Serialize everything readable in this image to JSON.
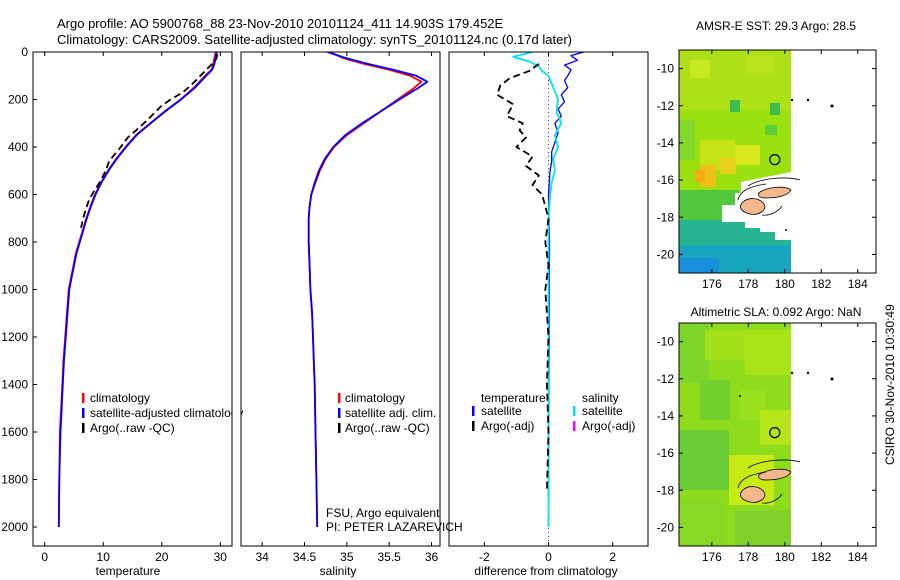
{
  "header": {
    "line1": "Argo profile: AO 5900768_88 23-Nov-2010 20101124_411 14.903S 179.452E",
    "line2": "Climatology: CARS2009. Satellite-adjusted climatology: synTS_20101124.nc (0.17d later)"
  },
  "side_label": "CSIRO 30-Nov-2010 10:30:49",
  "chart_data": [
    {
      "id": "temperature",
      "type": "line",
      "xlabel": "temperature",
      "ylabel": "",
      "xlim": [
        -2,
        32
      ],
      "ylim": [
        2080,
        0
      ],
      "xticks": [
        0,
        10,
        20,
        30
      ],
      "yticks": [
        0,
        200,
        400,
        600,
        800,
        1000,
        1200,
        1400,
        1600,
        1800,
        2000
      ],
      "legend": {
        "position": "lower-right",
        "entries": [
          {
            "label": "climatology",
            "color": "#ff0000",
            "marker": "bar"
          },
          {
            "label": "satellite-adjusted climatology",
            "color": "#0000ff",
            "marker": "bar"
          },
          {
            "label": "Argo(..raw -QC)",
            "color": "#000000",
            "marker": "bar"
          }
        ]
      },
      "series": [
        {
          "name": "climatology",
          "color": "#ff0000",
          "width": 1.8,
          "dash": "",
          "x": [
            29.2,
            29.0,
            28.8,
            28.5,
            27.4,
            25.5,
            23.2,
            20.5,
            18.0,
            15.6,
            13.8,
            12.2,
            10.8,
            9.6,
            8.6,
            7.8,
            7.1,
            6.5,
            5.9,
            5.3,
            4.9,
            4.5,
            4.1,
            3.8,
            3.5,
            3.2,
            3.0,
            2.8,
            2.6,
            2.5,
            2.4
          ],
          "y": [
            0,
            25,
            50,
            75,
            100,
            150,
            200,
            250,
            300,
            350,
            400,
            450,
            500,
            550,
            600,
            650,
            700,
            750,
            800,
            850,
            900,
            950,
            1000,
            1100,
            1200,
            1300,
            1400,
            1500,
            1600,
            1800,
            2000
          ]
        },
        {
          "name": "satellite-adjusted climatology",
          "color": "#0000ff",
          "width": 1.8,
          "dash": "",
          "x": [
            29.4,
            29.2,
            29.0,
            28.6,
            27.6,
            25.7,
            23.3,
            20.6,
            18.1,
            15.7,
            13.9,
            12.3,
            10.9,
            9.7,
            8.7,
            7.9,
            7.2,
            6.6,
            6.0,
            5.4,
            5.0,
            4.6,
            4.2,
            3.9,
            3.6,
            3.3,
            3.1,
            2.9,
            2.7,
            2.5,
            2.4
          ],
          "y": [
            0,
            25,
            50,
            75,
            100,
            150,
            200,
            250,
            300,
            350,
            400,
            450,
            500,
            550,
            600,
            650,
            700,
            750,
            800,
            850,
            900,
            950,
            1000,
            1100,
            1200,
            1300,
            1400,
            1500,
            1600,
            1800,
            2000
          ]
        },
        {
          "name": "Argo(..raw -QC)",
          "color": "#000000",
          "width": 1.8,
          "dash": "7,4",
          "x": [
            29.5,
            29.3,
            28.6,
            27.8,
            26.6,
            25.0,
            23.6,
            21.5,
            19.8,
            18.6,
            17.4,
            15.6,
            14.2,
            13.0,
            12.0,
            11.0,
            10.4,
            9.6,
            8.6,
            7.6,
            6.8,
            6.2
          ],
          "y": [
            10,
            30,
            50,
            70,
            100,
            140,
            170,
            200,
            230,
            260,
            290,
            330,
            360,
            400,
            430,
            460,
            500,
            540,
            580,
            620,
            680,
            740
          ]
        }
      ]
    },
    {
      "id": "salinity",
      "type": "line",
      "xlabel": "salinity",
      "ylabel": "",
      "xlim": [
        33.75,
        36.1
      ],
      "ylim": [
        2080,
        0
      ],
      "xticks": [
        34,
        34.5,
        35,
        35.5,
        36
      ],
      "legend": {
        "position": "lower-right",
        "entries": [
          {
            "label": "climatology",
            "color": "#ff0000",
            "marker": "bar"
          },
          {
            "label": "satellite adj. clim.",
            "color": "#0000ff",
            "marker": "bar"
          },
          {
            "label": "Argo(..raw -QC)",
            "color": "#000000",
            "marker": "bar"
          }
        ]
      },
      "annotations": [
        "FSU, Argo equivalent",
        "PI: PETER LAZAREVICH"
      ],
      "series": [
        {
          "name": "climatology",
          "color": "#ff0000",
          "width": 1.8,
          "dash": "",
          "x": [
            34.8,
            34.95,
            35.2,
            35.5,
            35.75,
            35.88,
            35.8,
            35.6,
            35.4,
            35.2,
            35.0,
            34.85,
            34.75,
            34.68,
            34.63,
            34.58,
            34.56,
            34.55,
            34.55,
            34.56,
            34.57,
            34.59,
            34.6,
            34.61,
            34.62,
            34.63,
            34.64,
            34.65
          ],
          "y": [
            0,
            25,
            50,
            75,
            100,
            125,
            150,
            200,
            250,
            300,
            350,
            400,
            450,
            500,
            550,
            600,
            650,
            700,
            800,
            900,
            1000,
            1100,
            1200,
            1300,
            1400,
            1600,
            1800,
            2000
          ]
        },
        {
          "name": "satellite adj. clim.",
          "color": "#0000ff",
          "width": 1.8,
          "dash": "",
          "x": [
            34.77,
            34.98,
            35.25,
            35.55,
            35.82,
            35.95,
            35.85,
            35.62,
            35.4,
            35.18,
            34.98,
            34.84,
            34.74,
            34.67,
            34.62,
            34.58,
            34.56,
            34.55,
            34.55,
            34.56,
            34.57,
            34.59,
            34.6,
            34.61,
            34.62,
            34.63,
            34.64,
            34.65
          ],
          "y": [
            0,
            25,
            50,
            75,
            100,
            125,
            150,
            200,
            250,
            300,
            350,
            400,
            450,
            500,
            550,
            600,
            650,
            700,
            800,
            900,
            1000,
            1100,
            1200,
            1300,
            1400,
            1600,
            1800,
            2000
          ]
        }
      ]
    },
    {
      "id": "difference",
      "type": "line",
      "xlabel": "difference from climatology",
      "ylabel": "",
      "xlim": [
        -3.1,
        3.1
      ],
      "ylim": [
        2080,
        0
      ],
      "xticks": [
        -2,
        0,
        2
      ],
      "legend": {
        "position": "lower-center",
        "columns": [
          {
            "title": "temperature",
            "entries": [
              {
                "label": "satellite",
                "color": "#0000ff",
                "marker": "bar"
              },
              {
                "label": "Argo(-adj)",
                "color": "#000000",
                "marker": "bar"
              }
            ]
          },
          {
            "title": "salinity",
            "entries": [
              {
                "label": "satellite",
                "color": "#00e5ee",
                "marker": "bar"
              },
              {
                "label": "Argo(-adj)",
                "color": "#ff00ff",
                "marker": "bar"
              }
            ]
          }
        ]
      },
      "series": [
        {
          "name": "temperature satellite",
          "color": "#0000ff",
          "width": 1.3,
          "dash": "",
          "x": [
            1.1,
            0.7,
            0.9,
            0.5,
            0.7,
            0.6,
            0.5,
            0.6,
            0.4,
            0.5,
            0.3,
            0.4,
            0.2,
            0.3,
            0.2,
            0.1,
            0.1,
            0.05,
            0.0,
            0.03,
            0.0
          ],
          "y": [
            0,
            15,
            35,
            55,
            75,
            100,
            120,
            150,
            180,
            210,
            240,
            270,
            300,
            340,
            380,
            420,
            460,
            500,
            600,
            800,
            2000
          ]
        },
        {
          "name": "salinity satellite",
          "color": "#00e5ee",
          "width": 1.8,
          "dash": "",
          "x": [
            -0.5,
            -1.1,
            -0.6,
            -0.3,
            -0.2,
            0.0,
            0.15,
            0.3,
            0.25,
            0.4,
            0.2,
            0.3,
            0.15,
            0.2,
            0.1,
            0.05,
            0.0,
            0.0
          ],
          "y": [
            0,
            20,
            40,
            60,
            80,
            100,
            150,
            200,
            250,
            300,
            350,
            400,
            450,
            500,
            550,
            600,
            700,
            2000
          ]
        },
        {
          "name": "temperature Argo(-adj)",
          "color": "#000000",
          "width": 1.8,
          "dash": "7,4",
          "x": [
            -0.3,
            -0.6,
            -1.2,
            -1.5,
            -1.6,
            -1.1,
            -1.3,
            -0.8,
            -0.9,
            -0.7,
            -1.0,
            -0.5,
            -0.7,
            -0.3,
            -0.5,
            -0.2,
            0.0,
            -0.1,
            0.0,
            -0.1,
            0.0,
            -0.05,
            0.0,
            -0.05
          ],
          "y": [
            50,
            80,
            110,
            140,
            180,
            220,
            270,
            300,
            330,
            360,
            400,
            440,
            480,
            520,
            560,
            600,
            700,
            800,
            900,
            1000,
            1200,
            1400,
            1600,
            1850
          ]
        }
      ]
    }
  ],
  "maps": [
    {
      "id": "sst",
      "title": "AMSR-E SST: 29.3 Argo: 28.5",
      "xlim": [
        174.2,
        185
      ],
      "ylim": [
        -21,
        -9
      ],
      "xticks": [
        176,
        178,
        180,
        182,
        184
      ],
      "yticks": [
        -10,
        -12,
        -14,
        -16,
        -18,
        -20
      ],
      "marker": {
        "lon": 179.45,
        "lat": -14.9
      }
    },
    {
      "id": "sla",
      "title": "Altimetric SLA: 0.092 Argo: NaN",
      "xlim": [
        174.2,
        185
      ],
      "ylim": [
        -21,
        -9
      ],
      "xticks": [
        176,
        178,
        180,
        182,
        184
      ],
      "yticks": [
        -10,
        -12,
        -14,
        -16,
        -18,
        -20
      ],
      "marker": {
        "lon": 179.45,
        "lat": -14.9
      }
    }
  ]
}
